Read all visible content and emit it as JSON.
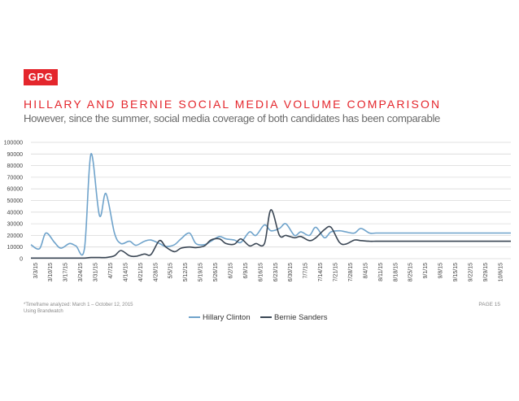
{
  "logo": {
    "text": "GPG"
  },
  "header": {
    "title": "HILLARY AND BERNIE SOCIAL MEDIA VOLUME COMPARISON",
    "subtitle": "However, since the summer, social media coverage of both candidates has been comparable"
  },
  "footer": {
    "note_line1": "*Timeframe analyzed: March 1 – October 12, 2015",
    "note_line2": "Using Brandwatch",
    "page": "PAGE 15"
  },
  "colors": {
    "brand": "#e4262c",
    "hillary": "#6fa3cb",
    "bernie": "#3a4654",
    "grid": "#d9d9d9",
    "axis_text": "#444444"
  },
  "chart_data": {
    "type": "line",
    "title": "",
    "xlabel": "",
    "ylabel": "",
    "ylim": [
      0,
      100000
    ],
    "yticks": [
      "0",
      "10000",
      "20000",
      "30000",
      "40000",
      "50000",
      "60000",
      "70000",
      "80000",
      "90000",
      "100000"
    ],
    "grid": true,
    "legend_position": "bottom",
    "x_tick_labels": [
      "3/3/15",
      "3/10/15",
      "3/17/15",
      "3/24/15",
      "3/31/15",
      "4/7/15",
      "4/14/15",
      "4/21/15",
      "4/28/15",
      "5/5/15",
      "5/12/15",
      "5/19/15",
      "5/26/15",
      "6/2/15",
      "6/9/15",
      "6/16/15",
      "6/23/15",
      "6/30/15",
      "7/7/15",
      "7/14/15",
      "7/21/15",
      "7/28/15",
      "8/4/15",
      "8/11/15",
      "8/18/15",
      "8/25/15",
      "9/1/15",
      "9/8/15",
      "9/15/15",
      "9/22/15",
      "9/29/15",
      "10/6/15"
    ],
    "x": [
      "3/1/15",
      "3/5/15",
      "3/8/15",
      "3/12/15",
      "3/15/15",
      "3/19/15",
      "3/22/15",
      "3/26/15",
      "3/29/15",
      "4/2/15",
      "4/5/15",
      "4/9/15",
      "4/12/15",
      "4/16/15",
      "4/19/15",
      "4/23/15",
      "4/26/15",
      "4/30/15",
      "5/3/15",
      "5/7/15",
      "5/10/15",
      "5/14/15",
      "5/17/15",
      "5/21/15",
      "5/24/15",
      "5/28/15",
      "5/31/15",
      "6/4/15",
      "6/7/15",
      "6/11/15",
      "6/14/15",
      "6/18/15",
      "6/21/15",
      "6/25/15",
      "6/28/15",
      "7/2/15",
      "7/5/15",
      "7/9/15",
      "7/12/15",
      "7/16/15",
      "7/19/15",
      "7/23/15",
      "7/26/15",
      "7/30/15",
      "8/2/15",
      "8/6/15",
      "8/9/15",
      "8/13/15",
      "8/16/15",
      "8/20/15",
      "8/23/15",
      "8/27/15",
      "8/30/15",
      "9/3/15",
      "9/6/15",
      "9/10/15",
      "9/13/15",
      "9/17/15",
      "9/20/15",
      "9/24/15",
      "9/27/15",
      "10/1/15",
      "10/4/15",
      "10/8/15",
      "10/11/15"
    ],
    "series": [
      {
        "name": "Hillary Clinton",
        "values": [
          12000,
          8500,
          22000,
          14000,
          9000,
          13000,
          11000,
          8500,
          90000,
          37000,
          56000,
          22000,
          13000,
          15000,
          11500,
          15000,
          16000,
          13000,
          10500,
          12000,
          17000,
          22000,
          13000,
          12000,
          15000,
          19000,
          17000,
          16000,
          14000,
          23000,
          20000,
          29000,
          24000,
          26000,
          30000,
          20000,
          23000,
          20000,
          27000,
          18000,
          23000,
          24000,
          23000,
          22000,
          26000,
          22000,
          22000,
          22000,
          22000,
          22000,
          22000,
          22000,
          22000,
          22000,
          22000,
          22000,
          22000,
          22000,
          22000,
          22000,
          22000,
          22000,
          22000,
          22000,
          22000
        ]
      },
      {
        "name": "Bernie Sanders",
        "values": [
          500,
          500,
          500,
          500,
          500,
          500,
          500,
          500,
          1000,
          1000,
          1000,
          2500,
          7000,
          2500,
          2000,
          4000,
          3500,
          15500,
          10000,
          6000,
          9000,
          10000,
          9500,
          11000,
          16000,
          17000,
          13000,
          12500,
          17000,
          11000,
          13000,
          13000,
          42000,
          20000,
          20000,
          18000,
          19000,
          15500,
          18000,
          25000,
          27000,
          14000,
          12500,
          16000,
          15500,
          15000,
          15000,
          15000,
          15000,
          15000,
          15000,
          15000,
          15000,
          15000,
          15000,
          15000,
          15000,
          15000,
          15000,
          15000,
          15000,
          15000,
          15000,
          15000,
          15000
        ]
      }
    ]
  }
}
